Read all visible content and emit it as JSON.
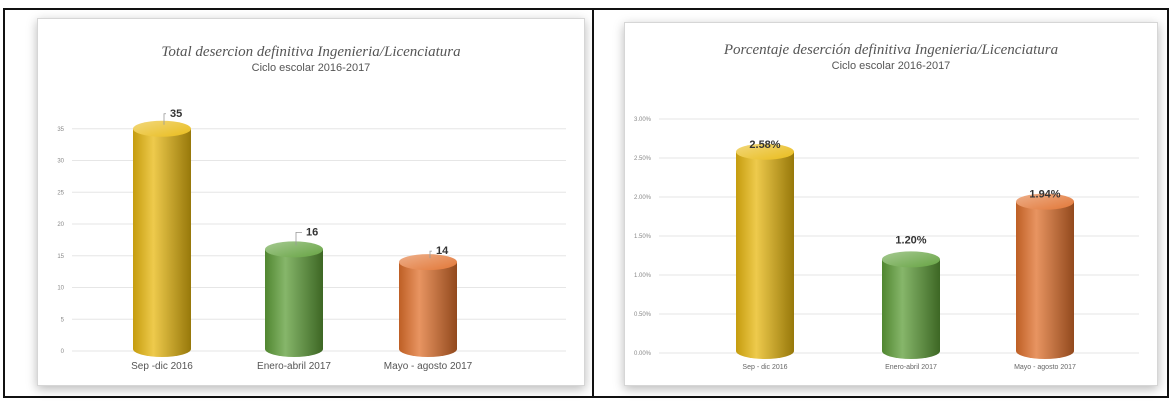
{
  "chart_data": [
    {
      "type": "bar",
      "title": "Total desercion definitiva Ingenieria/Licenciatura",
      "subtitle": "Ciclo escolar 2016-2017",
      "categories": [
        "Sep -dic 2016",
        "Enero-abril 2017",
        "Mayo - agosto 2017"
      ],
      "values": [
        35,
        16,
        14
      ],
      "data_labels": [
        "35",
        "16",
        "14"
      ],
      "yticks": [
        "0",
        "5",
        "10",
        "15",
        "20",
        "25",
        "30",
        "35"
      ],
      "ylim": [
        0,
        40
      ],
      "colors": [
        "#e8b810",
        "#5e9e38",
        "#e0702c"
      ],
      "grid": true
    },
    {
      "type": "bar",
      "title": "Porcentaje deserción definitiva Ingenieria/Licenciatura",
      "subtitle": "Ciclo escolar 2016-2017",
      "categories": [
        "Sep - dic 2016",
        "Enero-abril 2017",
        "Mayo - agosto 2017"
      ],
      "values": [
        2.58,
        1.2,
        1.94
      ],
      "data_labels": [
        "2.58%",
        "1.20%",
        "1.94%"
      ],
      "yticks": [
        "0.00%",
        "0.50%",
        "1.00%",
        "1.50%",
        "2.00%",
        "2.50%",
        "3.00%"
      ],
      "ylim": [
        0,
        3
      ],
      "colors": [
        "#e8b810",
        "#5e9e38",
        "#e0702c"
      ],
      "grid": true
    }
  ]
}
